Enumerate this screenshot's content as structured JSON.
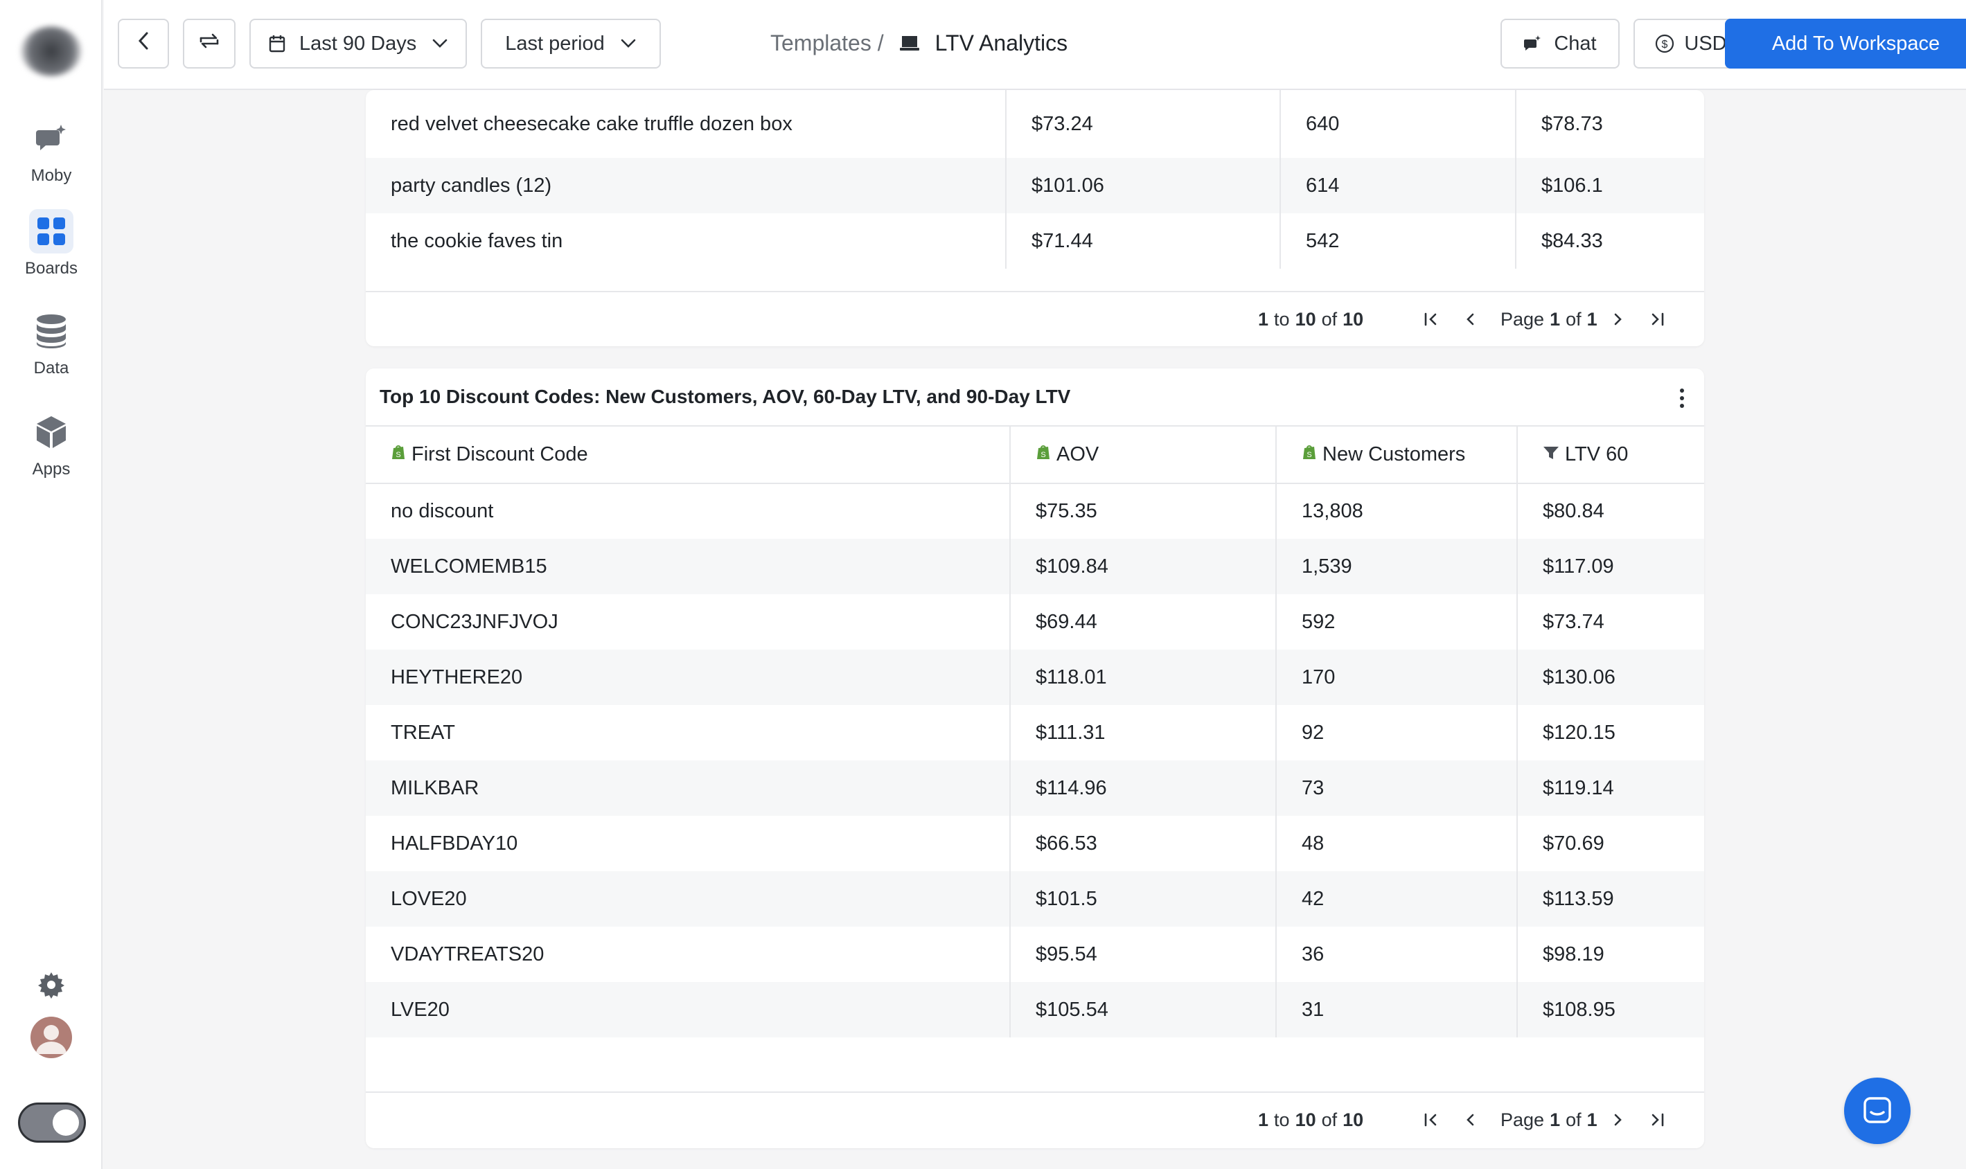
{
  "sidebar": {
    "items": [
      {
        "label": "Moby",
        "icon": "chat-sparkle-icon"
      },
      {
        "label": "Boards",
        "icon": "grid-icon"
      },
      {
        "label": "Data",
        "icon": "database-icon"
      },
      {
        "label": "Apps",
        "icon": "cube-icon"
      }
    ]
  },
  "topbar": {
    "date_range": "Last 90 Days",
    "compare": "Last period",
    "breadcrumb_parent": "Templates /",
    "breadcrumb_current": "LTV Analytics",
    "chat_label": "Chat",
    "currency": "USD",
    "add_label": "Add To Workspace"
  },
  "table1": {
    "rows": [
      [
        "red velvet cheesecake cake truffle dozen box",
        "$73.24",
        "640",
        "$78.73"
      ],
      [
        "party candles (12)",
        "$101.06",
        "614",
        "$106.1"
      ],
      [
        "the cookie faves tin",
        "$71.44",
        "542",
        "$84.33"
      ]
    ],
    "pager": {
      "from": "1",
      "to_word": "to",
      "to": "10",
      "of_word": "of",
      "total": "10",
      "page_word": "Page",
      "page": "1",
      "of2": "of",
      "pages": "1"
    }
  },
  "table2": {
    "title": "Top 10 Discount Codes: New Customers, AOV, 60-Day LTV, and 90-Day LTV",
    "headers": [
      "First Discount Code",
      "AOV",
      "New Customers",
      "LTV 60"
    ],
    "rows": [
      [
        "no discount",
        "$75.35",
        "13,808",
        "$80.84"
      ],
      [
        "WELCOMEMB15",
        "$109.84",
        "1,539",
        "$117.09"
      ],
      [
        "CONC23JNFJVOJ",
        "$69.44",
        "592",
        "$73.74"
      ],
      [
        "HEYTHERE20",
        "$118.01",
        "170",
        "$130.06"
      ],
      [
        "TREAT",
        "$111.31",
        "92",
        "$120.15"
      ],
      [
        "MILKBAR",
        "$114.96",
        "73",
        "$119.14"
      ],
      [
        "HALFBDAY10",
        "$66.53",
        "48",
        "$70.69"
      ],
      [
        "LOVE20",
        "$101.5",
        "42",
        "$113.59"
      ],
      [
        "VDAYTREATS20",
        "$95.54",
        "36",
        "$98.19"
      ],
      [
        "LVE20",
        "$105.54",
        "31",
        "$108.95"
      ]
    ],
    "pager": {
      "from": "1",
      "to_word": "to",
      "to": "10",
      "of_word": "of",
      "total": "10",
      "page_word": "Page",
      "page": "1",
      "of2": "of",
      "pages": "1"
    }
  },
  "colors": {
    "accent": "#1f6fe5",
    "shopify_green": "#5a9e3a"
  }
}
